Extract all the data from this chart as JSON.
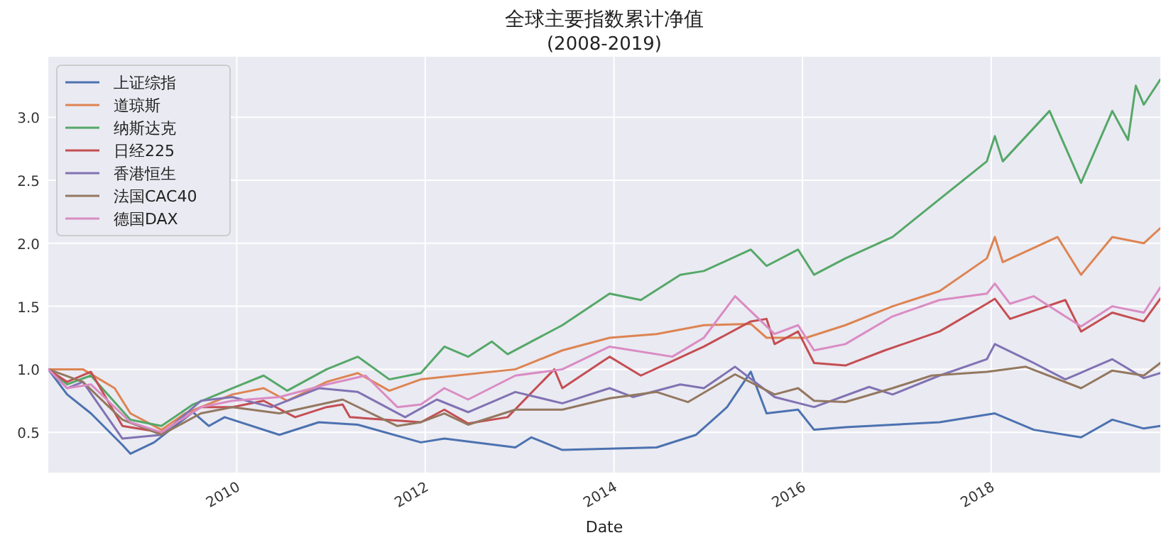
{
  "chart_data": {
    "type": "line",
    "title": "全球主要指数累计净值",
    "subtitle": "(2008-2019)",
    "xlabel": "Date",
    "xlim": [
      "2008-01-02",
      "2019-10-18"
    ],
    "xticks": [
      "2010",
      "2012",
      "2014",
      "2016",
      "2018"
    ],
    "ylim": [
      0.18,
      3.48
    ],
    "yticks": [
      0.5,
      {
        "value": 1,
        "label": "1.0"
      },
      1.5,
      {
        "value": 2,
        "label": "2.0"
      },
      2.5,
      {
        "value": 3,
        "label": "3.0"
      }
    ],
    "grid": true,
    "legend": "top left",
    "series": [
      {
        "name": "上证综指",
        "color": "#4c72b0",
        "x": [
          "2008-01-02",
          "2008-03",
          "2008-06",
          "2008-10",
          "2008-11",
          "2009-02",
          "2009-07",
          "2009-09",
          "2009-11",
          "2010-06",
          "2010-11",
          "2011-04",
          "2011-12",
          "2012-03",
          "2012-12",
          "2013-02",
          "2013-06",
          "2014-06",
          "2014-11",
          "2015-03",
          "2015-06",
          "2015-08",
          "2015-12",
          "2016-02",
          "2016-06",
          "2017-06",
          "2018-01",
          "2018-06",
          "2018-12",
          "2019-04",
          "2019-08",
          "2019-10-18"
        ],
        "values": [
          1.0,
          0.8,
          0.65,
          0.4,
          0.33,
          0.42,
          0.66,
          0.55,
          0.62,
          0.48,
          0.58,
          0.56,
          0.42,
          0.45,
          0.38,
          0.46,
          0.36,
          0.38,
          0.48,
          0.7,
          0.98,
          0.65,
          0.68,
          0.52,
          0.54,
          0.58,
          0.65,
          0.52,
          0.46,
          0.6,
          0.53,
          0.55
        ]
      },
      {
        "name": "道琼斯",
        "color": "#dd8452",
        "x": [
          "2008-01-02",
          "2008-05",
          "2008-09",
          "2008-11",
          "2009-03",
          "2009-06",
          "2009-12",
          "2010-04",
          "2010-07",
          "2010-12",
          "2011-04",
          "2011-08",
          "2011-12",
          "2012-12",
          "2013-06",
          "2013-12",
          "2014-06",
          "2014-12",
          "2015-06",
          "2015-08",
          "2016-01",
          "2016-06",
          "2016-12",
          "2017-06",
          "2017-12",
          "2018-01",
          "2018-02",
          "2018-09",
          "2018-12",
          "2019-04",
          "2019-08",
          "2019-10-18"
        ],
        "values": [
          1.0,
          1.0,
          0.85,
          0.65,
          0.52,
          0.65,
          0.8,
          0.85,
          0.75,
          0.9,
          0.97,
          0.83,
          0.92,
          1.0,
          1.15,
          1.25,
          1.28,
          1.35,
          1.36,
          1.25,
          1.25,
          1.35,
          1.5,
          1.62,
          1.88,
          2.05,
          1.85,
          2.05,
          1.75,
          2.05,
          2.0,
          2.12
        ]
      },
      {
        "name": "纳斯达克",
        "color": "#55a868",
        "x": [
          "2008-01-02",
          "2008-03",
          "2008-06",
          "2008-11",
          "2009-03",
          "2009-07",
          "2009-12",
          "2010-04",
          "2010-07",
          "2010-12",
          "2011-04",
          "2011-08",
          "2011-12",
          "2012-03",
          "2012-06",
          "2012-09",
          "2012-11",
          "2013-06",
          "2013-12",
          "2014-04",
          "2014-09",
          "2014-12",
          "2015-06",
          "2015-08",
          "2015-12",
          "2016-02",
          "2016-06",
          "2016-12",
          "2017-06",
          "2017-12",
          "2018-01",
          "2018-02",
          "2018-08",
          "2018-12",
          "2019-04",
          "2019-06",
          "2019-07",
          "2019-08",
          "2019-10-18"
        ],
        "values": [
          1.0,
          0.88,
          0.95,
          0.6,
          0.55,
          0.72,
          0.85,
          0.95,
          0.83,
          1.0,
          1.1,
          0.92,
          0.97,
          1.18,
          1.1,
          1.22,
          1.12,
          1.35,
          1.6,
          1.55,
          1.75,
          1.78,
          1.95,
          1.82,
          1.95,
          1.75,
          1.88,
          2.05,
          2.35,
          2.65,
          2.85,
          2.65,
          3.05,
          2.48,
          3.05,
          2.82,
          3.25,
          3.1,
          3.3
        ]
      },
      {
        "name": "日经225",
        "color": "#c44e52",
        "x": [
          "2008-01-02",
          "2008-03",
          "2008-06",
          "2008-10",
          "2009-03",
          "2009-08",
          "2009-12",
          "2010-04",
          "2010-08",
          "2010-12",
          "2011-02",
          "2011-03",
          "2011-12",
          "2012-03",
          "2012-06",
          "2012-11",
          "2013-05",
          "2013-06",
          "2013-12",
          "2014-04",
          "2014-12",
          "2015-06",
          "2015-08",
          "2015-09",
          "2015-12",
          "2016-02",
          "2016-06",
          "2016-11",
          "2017-06",
          "2017-12",
          "2018-01",
          "2018-03",
          "2018-10",
          "2018-12",
          "2019-04",
          "2019-08",
          "2019-10-18"
        ],
        "values": [
          1.0,
          0.9,
          0.98,
          0.55,
          0.5,
          0.7,
          0.7,
          0.75,
          0.62,
          0.7,
          0.72,
          0.62,
          0.58,
          0.68,
          0.57,
          0.62,
          1.0,
          0.85,
          1.1,
          0.95,
          1.18,
          1.38,
          1.4,
          1.2,
          1.3,
          1.05,
          1.03,
          1.15,
          1.3,
          1.52,
          1.56,
          1.4,
          1.55,
          1.3,
          1.45,
          1.38,
          1.56
        ]
      },
      {
        "name": "香港恒生",
        "color": "#8172b3",
        "x": [
          "2008-01-02",
          "2008-03",
          "2008-05",
          "2008-10",
          "2009-03",
          "2009-08",
          "2009-12",
          "2010-05",
          "2010-11",
          "2011-04",
          "2011-10",
          "2012-02",
          "2012-06",
          "2012-12",
          "2013-06",
          "2013-12",
          "2014-03",
          "2014-09",
          "2014-12",
          "2015-04",
          "2015-09",
          "2016-02",
          "2016-09",
          "2016-12",
          "2017-06",
          "2017-12",
          "2018-01",
          "2018-06",
          "2018-10",
          "2019-04",
          "2019-08",
          "2019-10-18"
        ],
        "values": [
          1.0,
          0.85,
          0.9,
          0.45,
          0.48,
          0.75,
          0.78,
          0.7,
          0.85,
          0.82,
          0.62,
          0.76,
          0.66,
          0.82,
          0.73,
          0.85,
          0.78,
          0.88,
          0.85,
          1.02,
          0.78,
          0.7,
          0.86,
          0.8,
          0.95,
          1.08,
          1.2,
          1.05,
          0.92,
          1.08,
          0.93,
          0.97
        ]
      },
      {
        "name": "法国CAC40",
        "color": "#937860",
        "x": [
          "2008-01-02",
          "2008-05",
          "2008-10",
          "2009-03",
          "2009-08",
          "2009-12",
          "2010-06",
          "2011-02",
          "2011-09",
          "2011-12",
          "2012-03",
          "2012-06",
          "2012-12",
          "2013-06",
          "2013-12",
          "2014-06",
          "2014-10",
          "2015-04",
          "2015-09",
          "2015-12",
          "2016-02",
          "2016-06",
          "2016-12",
          "2017-05",
          "2017-12",
          "2018-05",
          "2018-12",
          "2019-04",
          "2019-08",
          "2019-10-18"
        ],
        "values": [
          1.0,
          0.9,
          0.6,
          0.48,
          0.65,
          0.7,
          0.65,
          0.76,
          0.55,
          0.58,
          0.65,
          0.56,
          0.68,
          0.68,
          0.77,
          0.82,
          0.74,
          0.96,
          0.8,
          0.85,
          0.75,
          0.74,
          0.85,
          0.95,
          0.98,
          1.02,
          0.85,
          0.99,
          0.95,
          1.05
        ]
      },
      {
        "name": "德国DAX",
        "color": "#da8bc3",
        "x": [
          "2008-01-02",
          "2008-03",
          "2008-06",
          "2008-11",
          "2009-03",
          "2009-08",
          "2009-12",
          "2010-06",
          "2010-12",
          "2011-05",
          "2011-09",
          "2011-12",
          "2012-03",
          "2012-06",
          "2012-12",
          "2013-06",
          "2013-12",
          "2014-08",
          "2014-12",
          "2015-04",
          "2015-09",
          "2015-12",
          "2016-02",
          "2016-06",
          "2016-12",
          "2017-06",
          "2017-12",
          "2018-01",
          "2018-03",
          "2018-06",
          "2018-12",
          "2019-04",
          "2019-08",
          "2019-10-18"
        ],
        "values": [
          1.0,
          0.85,
          0.88,
          0.58,
          0.5,
          0.7,
          0.75,
          0.78,
          0.88,
          0.95,
          0.7,
          0.72,
          0.85,
          0.76,
          0.95,
          1.0,
          1.18,
          1.1,
          1.25,
          1.58,
          1.28,
          1.35,
          1.15,
          1.2,
          1.42,
          1.55,
          1.6,
          1.68,
          1.52,
          1.58,
          1.34,
          1.5,
          1.45,
          1.65
        ]
      }
    ]
  }
}
